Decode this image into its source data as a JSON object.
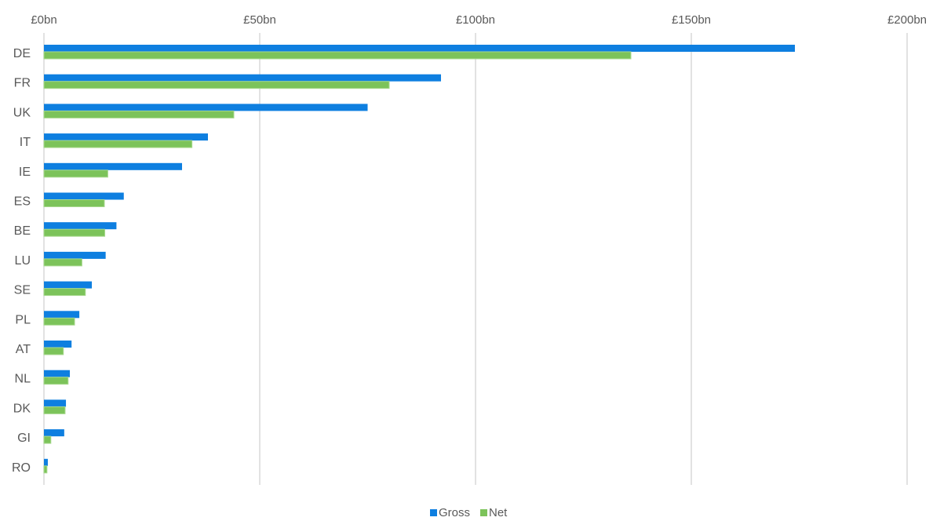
{
  "chart_data": {
    "type": "bar",
    "orientation": "horizontal",
    "title": "",
    "xlabel": "",
    "ylabel": "",
    "xlim": [
      0,
      200
    ],
    "x_ticks": [
      0,
      50,
      100,
      150,
      200
    ],
    "x_tick_labels": [
      "£0bn",
      "£50bn",
      "£100bn",
      "£150bn",
      "£200bn"
    ],
    "x_axis_position": "top",
    "grid": "vertical gridlines",
    "legend_position": "bottom",
    "categories": [
      "DE",
      "FR",
      "UK",
      "IT",
      "IE",
      "ES",
      "BE",
      "LU",
      "SE",
      "PL",
      "AT",
      "NL",
      "DK",
      "GI",
      "RO"
    ],
    "series": [
      {
        "name": "Gross",
        "color": "#0e7fe0",
        "values": [
          174,
          92,
          75,
          38,
          32,
          18.5,
          16.8,
          14.3,
          11.1,
          8.2,
          6.4,
          6.0,
          5.1,
          4.7,
          0.9
        ]
      },
      {
        "name": "Net",
        "color": "#7cc35a",
        "values": [
          136,
          80,
          44,
          34.3,
          14.8,
          14,
          14.1,
          8.8,
          9.6,
          7.1,
          4.5,
          5.6,
          4.9,
          1.6,
          0.7
        ]
      }
    ]
  }
}
